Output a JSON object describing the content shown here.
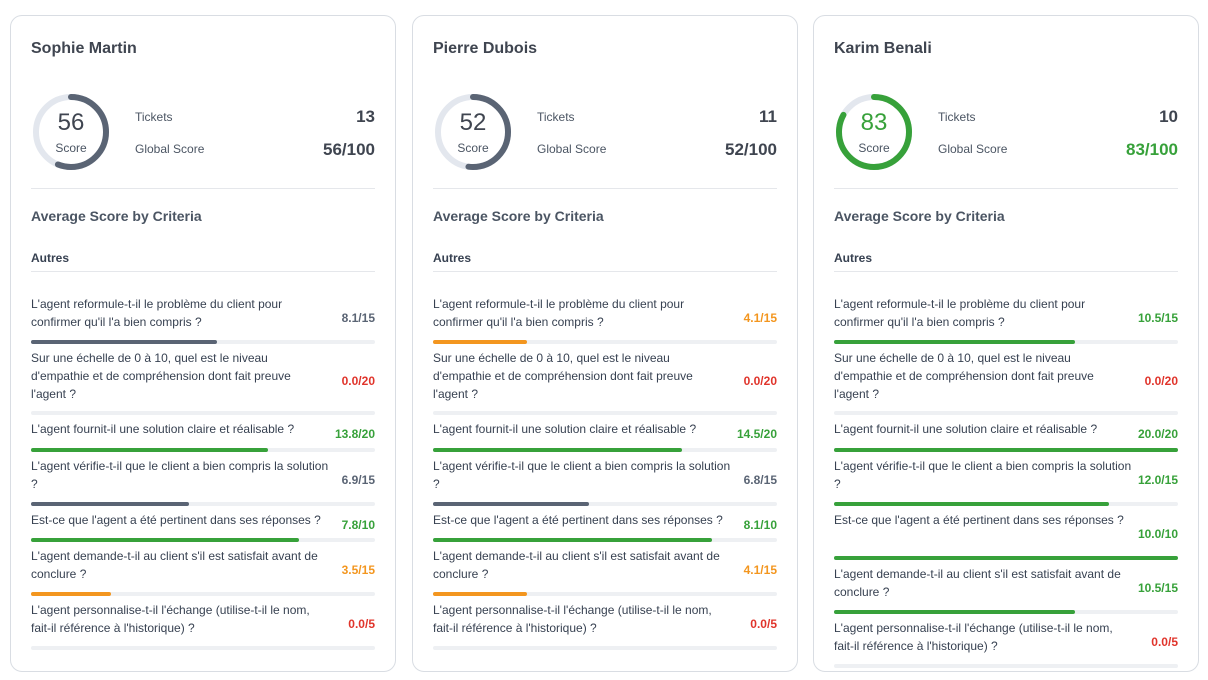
{
  "common": {
    "tickets_label": "Tickets",
    "global_score_label": "Global Score",
    "score_label": "Score",
    "section_title": "Average Score by Criteria",
    "group_title": "Autres",
    "criteria_labels": [
      "L'agent reformule-t-il le problème du client pour confirmer qu'il l'a bien compris ?",
      "Sur une échelle de 0 à 10, quel est le niveau d'empathie et de compréhension dont fait preuve l'agent ?",
      "L'agent fournit-il une solution claire et réalisable ?",
      "L'agent vérifie-t-il que le client a bien compris la solution ?",
      "Est-ce que l'agent a été pertinent dans ses réponses ?",
      "L'agent demande-t-il au client s'il est satisfait avant de conclure ?",
      "L'agent personnalise-t-il l'échange (utilise-t-il le nom, fait-il référence à l'historique) ?"
    ]
  },
  "colors": {
    "gray": "#5a6474",
    "green": "#37a13a",
    "orange": "#f3961f",
    "red": "#e0342b",
    "track": "#e3e7ee"
  },
  "agents": [
    {
      "name": "Sophie Martin",
      "score": "56",
      "score_fraction": 0.56,
      "tickets": "13",
      "global_score": "56/100",
      "accent": "gray",
      "criteria": [
        {
          "score": "8.1/15",
          "fraction": 0.54,
          "color": "gray"
        },
        {
          "score": "0.0/20",
          "fraction": 0.0,
          "color": "red"
        },
        {
          "score": "13.8/20",
          "fraction": 0.69,
          "color": "green"
        },
        {
          "score": "6.9/15",
          "fraction": 0.46,
          "color": "gray"
        },
        {
          "score": "7.8/10",
          "fraction": 0.78,
          "color": "green"
        },
        {
          "score": "3.5/15",
          "fraction": 0.233,
          "color": "orange"
        },
        {
          "score": "0.0/5",
          "fraction": 0.0,
          "color": "red"
        }
      ]
    },
    {
      "name": "Pierre Dubois",
      "score": "52",
      "score_fraction": 0.52,
      "tickets": "11",
      "global_score": "52/100",
      "accent": "gray",
      "criteria": [
        {
          "score": "4.1/15",
          "fraction": 0.273,
          "color": "orange"
        },
        {
          "score": "0.0/20",
          "fraction": 0.0,
          "color": "red"
        },
        {
          "score": "14.5/20",
          "fraction": 0.725,
          "color": "green"
        },
        {
          "score": "6.8/15",
          "fraction": 0.453,
          "color": "gray"
        },
        {
          "score": "8.1/10",
          "fraction": 0.81,
          "color": "green"
        },
        {
          "score": "4.1/15",
          "fraction": 0.273,
          "color": "orange"
        },
        {
          "score": "0.0/5",
          "fraction": 0.0,
          "color": "red"
        }
      ]
    },
    {
      "name": "Karim Benali",
      "score": "83",
      "score_fraction": 0.83,
      "tickets": "10",
      "global_score": "83/100",
      "accent": "green",
      "criteria": [
        {
          "score": "10.5/15",
          "fraction": 0.7,
          "color": "green"
        },
        {
          "score": "0.0/20",
          "fraction": 0.0,
          "color": "red"
        },
        {
          "score": "20.0/20",
          "fraction": 1.0,
          "color": "green"
        },
        {
          "score": "12.0/15",
          "fraction": 0.8,
          "color": "green"
        },
        {
          "score": "10.0/10",
          "fraction": 1.0,
          "color": "green"
        },
        {
          "score": "10.5/15",
          "fraction": 0.7,
          "color": "green"
        },
        {
          "score": "0.0/5",
          "fraction": 0.0,
          "color": "red"
        }
      ]
    }
  ]
}
